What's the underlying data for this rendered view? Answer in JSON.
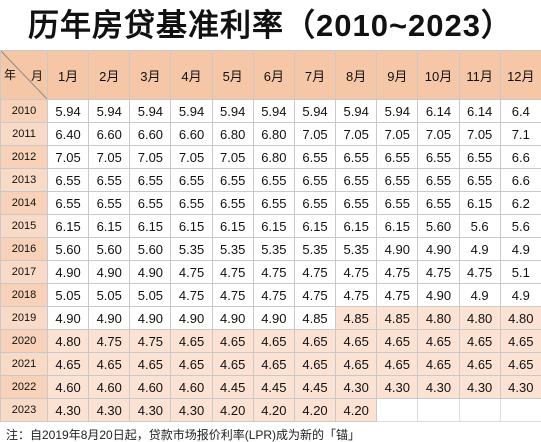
{
  "title": "历年房贷基准利率（2010~2023）",
  "corner": {
    "year": "年",
    "month": "月"
  },
  "months": [
    "1月",
    "2月",
    "3月",
    "4月",
    "5月",
    "6月",
    "7月",
    "8月",
    "9月",
    "10月",
    "11月",
    "12月"
  ],
  "rows": [
    {
      "year": "2010",
      "values": [
        "5.94",
        "5.94",
        "5.94",
        "5.94",
        "5.94",
        "5.94",
        "5.94",
        "5.94",
        "5.94",
        "6.14",
        "6.14",
        "6.4"
      ]
    },
    {
      "year": "2011",
      "values": [
        "6.40",
        "6.60",
        "6.60",
        "6.60",
        "6.80",
        "6.80",
        "7.05",
        "7.05",
        "7.05",
        "7.05",
        "7.05",
        "7.1"
      ]
    },
    {
      "year": "2012",
      "values": [
        "7.05",
        "7.05",
        "7.05",
        "7.05",
        "7.05",
        "6.80",
        "6.55",
        "6.55",
        "6.55",
        "6.55",
        "6.55",
        "6.6"
      ]
    },
    {
      "year": "2013",
      "values": [
        "6.55",
        "6.55",
        "6.55",
        "6.55",
        "6.55",
        "6.55",
        "6.55",
        "6.55",
        "6.55",
        "6.55",
        "6.55",
        "6.6"
      ]
    },
    {
      "year": "2014",
      "values": [
        "6.55",
        "6.55",
        "6.55",
        "6.55",
        "6.55",
        "6.55",
        "6.55",
        "6.55",
        "6.55",
        "6.55",
        "6.15",
        "6.2"
      ]
    },
    {
      "year": "2015",
      "values": [
        "6.15",
        "6.15",
        "6.15",
        "6.15",
        "6.15",
        "6.15",
        "6.15",
        "6.15",
        "6.15",
        "5.60",
        "5.6",
        "5.6"
      ]
    },
    {
      "year": "2016",
      "values": [
        "5.60",
        "5.60",
        "5.60",
        "5.35",
        "5.35",
        "5.35",
        "5.35",
        "5.35",
        "4.90",
        "4.90",
        "4.9",
        "4.9"
      ]
    },
    {
      "year": "2017",
      "values": [
        "4.90",
        "4.90",
        "4.90",
        "4.75",
        "4.75",
        "4.75",
        "4.75",
        "4.75",
        "4.75",
        "4.75",
        "4.75",
        "5.1"
      ]
    },
    {
      "year": "2018",
      "values": [
        "5.05",
        "5.05",
        "5.05",
        "4.75",
        "4.75",
        "4.75",
        "4.75",
        "4.75",
        "4.75",
        "4.90",
        "4.9",
        "4.9"
      ]
    },
    {
      "year": "2019",
      "values": [
        "4.90",
        "4.90",
        "4.90",
        "4.90",
        "4.90",
        "4.90",
        "4.85",
        "4.85",
        "4.85",
        "4.80",
        "4.80",
        "4.80"
      ]
    },
    {
      "year": "2020",
      "values": [
        "4.80",
        "4.75",
        "4.75",
        "4.65",
        "4.65",
        "4.65",
        "4.65",
        "4.65",
        "4.65",
        "4.65",
        "4.65",
        "4.65"
      ]
    },
    {
      "year": "2021",
      "values": [
        "4.65",
        "4.65",
        "4.65",
        "4.65",
        "4.65",
        "4.65",
        "4.65",
        "4.65",
        "4.65",
        "4.65",
        "4.65",
        "4.65"
      ]
    },
    {
      "year": "2022",
      "values": [
        "4.60",
        "4.60",
        "4.60",
        "4.60",
        "4.45",
        "4.45",
        "4.45",
        "4.30",
        "4.30",
        "4.30",
        "4.30",
        "4.30"
      ]
    },
    {
      "year": "2023",
      "values": [
        "4.30",
        "4.30",
        "4.30",
        "4.30",
        "4.20",
        "4.20",
        "4.20",
        "4.20",
        "",
        "",
        "",
        ""
      ]
    }
  ],
  "note": "注：自2019年8月20日起，贷款市场报价利率(LPR)成为新的「锚」"
}
